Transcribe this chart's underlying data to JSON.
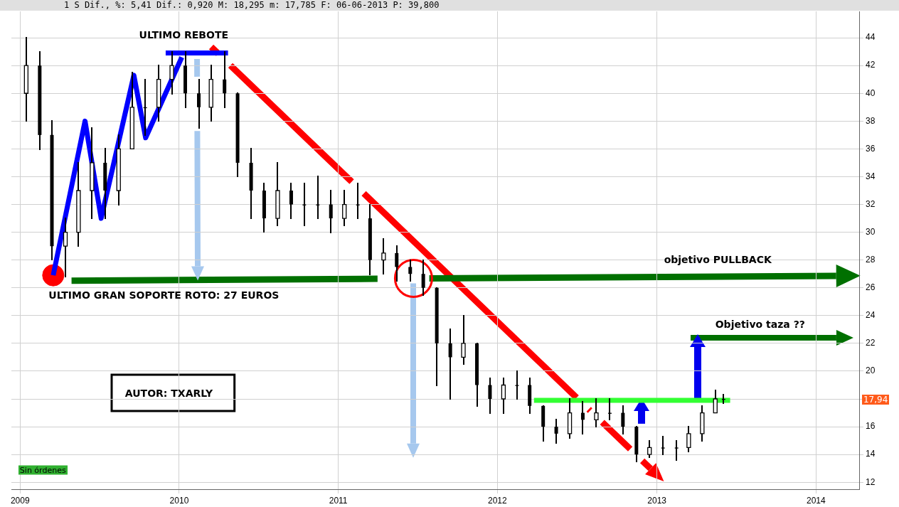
{
  "chart_data": {
    "type": "candlestick",
    "title": "1 S Dif., %: 5,41 Dif.: 0,920 M: 18,295 m: 17,785 F: 06-06-2013 P: 39,800",
    "x": [
      "2009-01-15",
      "2009-02-15",
      "2009-03-15",
      "2009-04-15",
      "2009-05-15",
      "2009-06-15",
      "2009-07-15",
      "2009-08-15",
      "2009-09-15",
      "2009-10-15",
      "2009-11-15",
      "2009-12-15",
      "2010-01-15",
      "2010-02-15",
      "2010-03-15",
      "2010-04-15",
      "2010-05-15",
      "2010-06-15",
      "2010-07-15",
      "2010-08-15",
      "2010-09-15",
      "2010-10-15",
      "2010-11-15",
      "2010-12-15",
      "2011-01-15",
      "2011-02-15",
      "2011-03-15",
      "2011-04-15",
      "2011-05-15",
      "2011-06-15",
      "2011-07-15",
      "2011-08-15",
      "2011-09-15",
      "2011-10-15",
      "2011-11-15",
      "2011-12-15",
      "2012-01-15",
      "2012-02-15",
      "2012-03-15",
      "2012-04-15",
      "2012-05-15",
      "2012-06-15",
      "2012-07-15",
      "2012-08-15",
      "2012-09-15",
      "2012-10-15",
      "2012-11-15",
      "2012-12-15",
      "2013-01-15",
      "2013-02-15",
      "2013-03-15",
      "2013-04-15",
      "2013-05-15",
      "2013-06-03"
    ],
    "ohlc": [
      [
        40,
        44,
        38,
        42
      ],
      [
        42,
        43,
        36,
        37
      ],
      [
        37,
        38,
        28,
        29
      ],
      [
        29,
        31,
        26.8,
        30
      ],
      [
        30,
        35,
        29,
        33
      ],
      [
        33,
        37.5,
        31,
        35
      ],
      [
        35,
        36,
        31,
        33
      ],
      [
        33,
        37,
        32,
        36
      ],
      [
        36,
        41.5,
        36,
        39
      ],
      [
        39,
        41,
        37,
        39
      ],
      [
        39,
        42,
        38,
        41
      ],
      [
        41,
        43,
        40,
        42
      ],
      [
        42,
        43,
        39,
        40
      ],
      [
        40,
        41,
        37.5,
        39
      ],
      [
        39,
        42,
        38,
        41
      ],
      [
        41,
        43,
        39,
        40
      ],
      [
        40,
        40,
        34,
        35
      ],
      [
        35,
        36,
        31,
        33
      ],
      [
        33,
        33.5,
        30,
        31
      ],
      [
        31,
        35,
        30.5,
        33
      ],
      [
        33,
        33.5,
        31,
        32
      ],
      [
        32,
        33.5,
        30.5,
        32
      ],
      [
        32,
        34,
        31,
        32
      ],
      [
        32,
        33,
        30,
        31
      ],
      [
        31,
        33,
        30.5,
        32
      ],
      [
        32,
        33.5,
        31,
        32
      ],
      [
        31,
        32,
        27,
        28
      ],
      [
        28,
        29.5,
        27,
        28.5
      ],
      [
        28.5,
        29,
        26.5,
        27.5
      ],
      [
        27.5,
        28,
        26.5,
        27
      ],
      [
        27,
        28,
        25.5,
        26
      ],
      [
        26,
        26,
        19,
        22
      ],
      [
        22,
        23,
        18,
        21
      ],
      [
        21,
        24,
        20.5,
        22
      ],
      [
        22,
        22,
        17.5,
        19
      ],
      [
        19,
        19.5,
        17,
        18
      ],
      [
        18,
        19.5,
        17,
        19
      ],
      [
        19,
        20,
        18,
        19
      ],
      [
        19,
        19.5,
        17,
        17.5
      ],
      [
        17.5,
        17.5,
        15,
        16
      ],
      [
        16,
        16.5,
        14.8,
        15.5
      ],
      [
        15.5,
        18,
        15.2,
        17
      ],
      [
        17,
        17.8,
        15.5,
        16.5
      ],
      [
        16.5,
        18,
        16,
        17
      ],
      [
        17,
        18,
        16.5,
        17
      ],
      [
        17,
        17.5,
        15.5,
        16
      ],
      [
        16,
        16,
        13.5,
        14
      ],
      [
        14,
        15,
        13.8,
        14.5
      ],
      [
        14.5,
        15.3,
        14,
        14.5
      ],
      [
        14.5,
        15,
        13.6,
        14.5
      ],
      [
        14.5,
        16,
        14.2,
        15.5
      ],
      [
        15.5,
        17.5,
        15,
        17
      ],
      [
        17,
        18.6,
        17,
        18
      ],
      [
        18,
        18.3,
        17.7,
        17.94
      ]
    ],
    "series": [
      {
        "type": "line",
        "color": "#0000ff",
        "x": [
          "2009-03-18",
          "2009-05-30",
          "2009-07-06",
          "2009-09-19",
          "2009-10-16",
          "2010-01-07"
        ],
        "values": [
          26.9,
          38,
          31,
          41.3,
          36.8,
          42.6
        ]
      },
      {
        "type": "line",
        "color": "#0000ff",
        "x": [
          "2009-12-01",
          "2010-04-23"
        ],
        "values": [
          42.9,
          42.9
        ]
      },
      {
        "type": "line",
        "color": "#33ff33",
        "x": [
          "2012-03-25",
          "2013-06-18"
        ],
        "values": [
          17.9,
          17.9
        ]
      },
      {
        "type": "scatter",
        "color": "#ff0000",
        "x": [
          "2009-03-18"
        ],
        "values": [
          26.9
        ]
      }
    ],
    "xlim": [
      "2008-12-12",
      "2014-04-10"
    ],
    "xticks": [
      "2009",
      "2010",
      "2011",
      "2012",
      "2013",
      "2014"
    ],
    "ylim": [
      11.5,
      45.9
    ],
    "yticks": [
      12,
      14,
      16,
      {
        "value": 18,
        "label": null
      },
      20,
      22,
      24,
      26,
      28,
      30,
      32,
      34,
      36,
      38,
      40,
      42,
      44
    ],
    "grid": true,
    "annotations": [
      "ULTIMO REBOTE",
      "ULTIMO GRAN SOPORTE ROTO: 27 EUROS",
      "objetivo PULLBACK",
      "Objetivo taza ??",
      "AUTOR: TXARLY",
      "Sin órdenes",
      "17,94"
    ]
  }
}
